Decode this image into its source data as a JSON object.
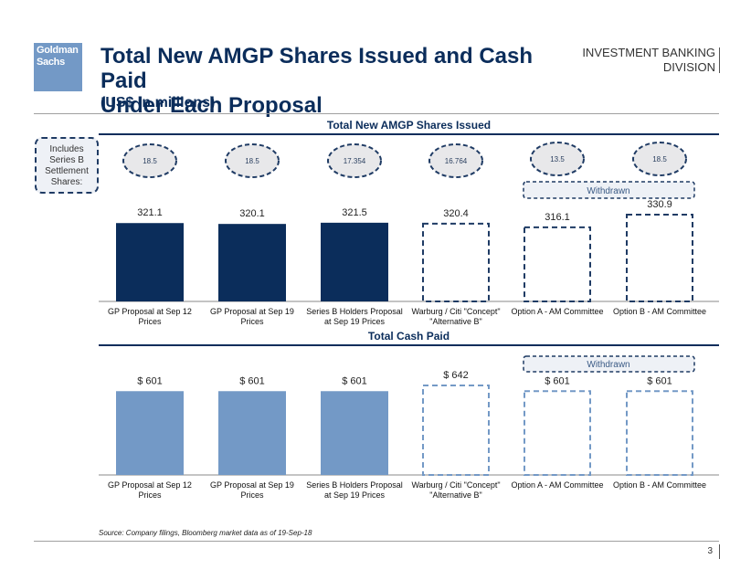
{
  "header": {
    "logo_text": [
      "Goldman",
      "Sachs"
    ],
    "title_line1": "Total New AMGP Shares Issued and Cash Paid",
    "title_line2": "Under Each Proposal",
    "subtitle": "(US$ in millions)",
    "division_line1": "INVESTMENT BANKING",
    "division_line2": "DIVISION"
  },
  "includes_note": [
    "Includes",
    "Series B",
    "Settlement",
    "Shares:"
  ],
  "withdrawn_label": "Withdrawn",
  "colors": {
    "navy": "#0b2d5b",
    "light_blue": "#7399c6",
    "ellipse_fill": "#e8e8ea",
    "withdrawn_fill": "#eef1f6"
  },
  "chart_data": [
    {
      "type": "bar",
      "title": "Total New AMGP Shares Issued",
      "categories": [
        "GP Proposal at Sep 12 Prices",
        "GP Proposal at Sep 19 Prices",
        "Series B Holders Proposal at Sep 19 Prices",
        "Warburg / Citi \"Concept\" \"Alternative B\"",
        "Option A - AM Committee",
        "Option B - AM Committee"
      ],
      "category_lines": [
        [
          "GP Proposal at Sep 12",
          "Prices"
        ],
        [
          "GP Proposal at Sep 19",
          "Prices"
        ],
        [
          "Series B Holders Proposal",
          "at Sep 19 Prices"
        ],
        [
          "Warburg / Citi \"Concept\"",
          "\"Alternative B\""
        ],
        [
          "Option A - AM Committee"
        ],
        [
          "Option B - AM Committee"
        ]
      ],
      "values": [
        321.1,
        320.1,
        321.5,
        320.4,
        316.1,
        330.9
      ],
      "labels": [
        "321.1",
        "320.1",
        "321.5",
        "320.4",
        "316.1",
        "330.9"
      ],
      "style": [
        "solid",
        "solid",
        "solid",
        "dashed",
        "dashed",
        "dashed"
      ],
      "series_b_settlement_shares": [
        "18.5",
        "18.5",
        "17.354",
        "16.764",
        "13.5",
        "18.5"
      ],
      "withdrawn": [
        false,
        false,
        false,
        false,
        true,
        true
      ],
      "xlabel": "",
      "ylabel": "",
      "grid": false
    },
    {
      "type": "bar",
      "title": "Total Cash Paid",
      "categories": [
        "GP Proposal at Sep 12 Prices",
        "GP Proposal at Sep 19 Prices",
        "Series B Holders Proposal at Sep 19 Prices",
        "Warburg / Citi \"Concept\" \"Alternative B\"",
        "Option A - AM Committee",
        "Option B - AM Committee"
      ],
      "category_lines": [
        [
          "GP Proposal at Sep 12",
          "Prices"
        ],
        [
          "GP Proposal at Sep 19",
          "Prices"
        ],
        [
          "Series B Holders Proposal",
          "at Sep 19 Prices"
        ],
        [
          "Warburg / Citi \"Concept\"",
          "\"Alternative B\""
        ],
        [
          "Option A - AM Committee"
        ],
        [
          "Option B - AM Committee"
        ]
      ],
      "values": [
        601,
        601,
        601,
        642,
        601,
        601
      ],
      "labels": [
        "$ 601",
        "$ 601",
        "$ 601",
        "$ 642",
        "$ 601",
        "$ 601"
      ],
      "style": [
        "solid",
        "solid",
        "solid",
        "dashed",
        "dashed",
        "dashed"
      ],
      "withdrawn": [
        false,
        false,
        false,
        false,
        true,
        true
      ],
      "xlabel": "",
      "ylabel": "",
      "grid": false
    }
  ],
  "footer": {
    "source": "Source: Company filings, Bloomberg market data as of 19-Sep-18",
    "page_number": "3"
  }
}
